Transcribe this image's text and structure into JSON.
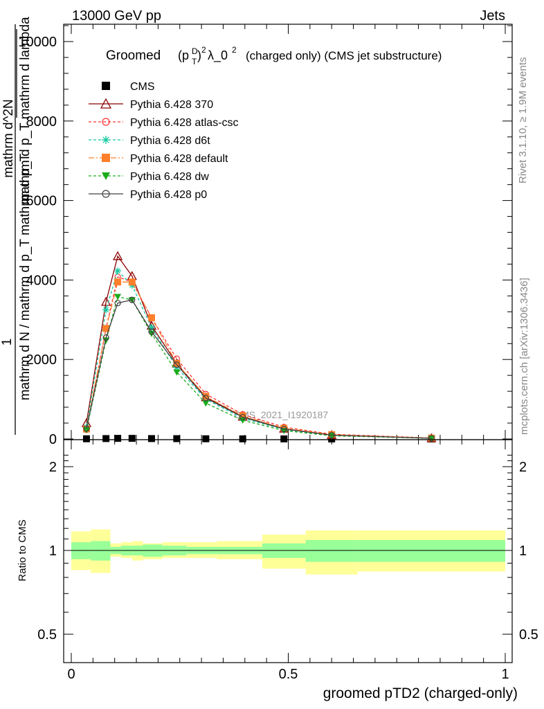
{
  "header": {
    "left": "13000 GeV pp",
    "right": "Jets"
  },
  "title": {
    "prefix": "Groomed",
    "text": "(charged only) (CMS jet substructure)"
  },
  "side_labels": {
    "rivet": "Rivet 3.1.10, ≥ 1.9M events",
    "mcplots": "mcplots.cern.ch [arXiv:1306.3436]"
  },
  "watermark": "CMS_2021_I1920187",
  "chart_data": [
    {
      "type": "line",
      "xlabel": "groomed pTD2 (charged-only)",
      "ylabel_parts": [
        "1",
        "mathrm d N / mathrm d p_T mathrm d p_T",
        "mathrm d^2N",
        "mathrm d p_T mathrm d lambda"
      ],
      "xlim": [
        0,
        1
      ],
      "ylim": [
        0,
        10400
      ],
      "y_ticks": [
        0,
        2000,
        4000,
        6000,
        8000,
        10000
      ],
      "y_tick_labels": [
        "0",
        "2000",
        "4000",
        "6000",
        "8000",
        "10000"
      ],
      "legend_position": "top-left",
      "x": [
        0.035,
        0.08,
        0.107,
        0.14,
        0.185,
        0.243,
        0.31,
        0.395,
        0.49,
        0.6,
        0.83
      ],
      "series": [
        {
          "name": "CMS",
          "color": "#000000",
          "marker": "square",
          "values": [
            5,
            10,
            15,
            15,
            10,
            8,
            5,
            3,
            2,
            1,
            0
          ]
        },
        {
          "name": "Pythia 6.428 370",
          "color": "#8b0000",
          "marker": "triangle-open",
          "dash": "",
          "values": [
            400,
            3450,
            4600,
            4100,
            2850,
            1900,
            1050,
            560,
            260,
            100,
            20
          ]
        },
        {
          "name": "Pythia 6.428 atlas-csc",
          "color": "#ff3333",
          "marker": "circle-open",
          "dash": "4,3",
          "values": [
            230,
            2780,
            4080,
            3950,
            3050,
            2020,
            1130,
            620,
            300,
            120,
            25
          ]
        },
        {
          "name": "Pythia 6.428 d6t",
          "color": "#13c8a0",
          "marker": "star",
          "dash": "4,3",
          "values": [
            300,
            3250,
            4230,
            3870,
            2800,
            1800,
            1000,
            520,
            240,
            90,
            18
          ]
        },
        {
          "name": "Pythia 6.428 default",
          "color": "#ff7f2a",
          "marker": "square",
          "dash": "8,3,2,3",
          "values": [
            250,
            2780,
            3950,
            3950,
            3050,
            1900,
            1070,
            580,
            270,
            110,
            22
          ]
        },
        {
          "name": "Pythia 6.428 dw",
          "color": "#1aaa1a",
          "marker": "triangle-down",
          "dash": "4,3",
          "values": [
            230,
            2480,
            3580,
            3500,
            2650,
            1680,
            900,
            470,
            210,
            80,
            15
          ]
        },
        {
          "name": "Pythia 6.428 p0",
          "color": "#404040",
          "marker": "circle-open",
          "dash": "",
          "values": [
            260,
            2550,
            3420,
            3500,
            2700,
            1870,
            1030,
            550,
            250,
            95,
            18
          ]
        }
      ]
    },
    {
      "type": "area",
      "xlabel": "groomed pTD2 (charged-only)",
      "ylabel": "Ratio to CMS",
      "xlim": [
        0,
        1
      ],
      "ylim": [
        0.4,
        2.3
      ],
      "log_y": true,
      "y_tick_labels": [
        "0.5",
        "1",
        "2"
      ],
      "x_tick_labels": [
        "0",
        "0.5",
        "1"
      ],
      "bin_edges": [
        0,
        0.045,
        0.09,
        0.115,
        0.14,
        0.165,
        0.21,
        0.265,
        0.335,
        0.44,
        0.54,
        0.66,
        1.0
      ],
      "inner_band": {
        "color": "#99ff99",
        "lo": [
          0.93,
          0.92,
          0.97,
          0.96,
          0.96,
          0.95,
          0.96,
          0.97,
          0.97,
          0.94,
          0.91,
          0.91
        ],
        "hi": [
          1.07,
          1.08,
          1.03,
          1.04,
          1.04,
          1.05,
          1.04,
          1.03,
          1.03,
          1.06,
          1.09,
          1.09
        ]
      },
      "outer_band": {
        "color": "#ffff99",
        "lo": [
          0.85,
          0.83,
          0.95,
          0.94,
          0.92,
          0.93,
          0.94,
          0.94,
          0.93,
          0.86,
          0.82,
          0.84
        ],
        "hi": [
          1.17,
          1.19,
          1.06,
          1.07,
          1.08,
          1.06,
          1.07,
          1.07,
          1.08,
          1.14,
          1.18,
          1.18
        ]
      }
    }
  ]
}
